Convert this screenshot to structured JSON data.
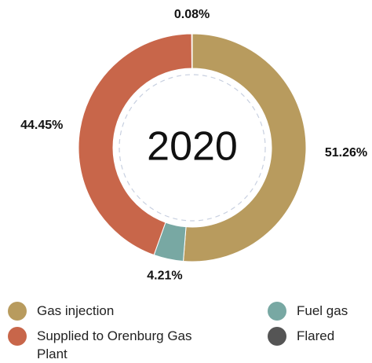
{
  "chart_data": {
    "type": "donut",
    "center_label": "2020",
    "categories": [
      "Gas injection",
      "Fuel gas",
      "Supplied to Orenburg Gas Plant",
      "Flared"
    ],
    "values": [
      51.26,
      4.21,
      44.45,
      0.08
    ],
    "value_labels": [
      "51.26%",
      "4.21%",
      "44.45%",
      "0.08%"
    ],
    "colors": [
      "#b89b5e",
      "#78a8a3",
      "#c8664a",
      "#555555"
    ]
  }
}
